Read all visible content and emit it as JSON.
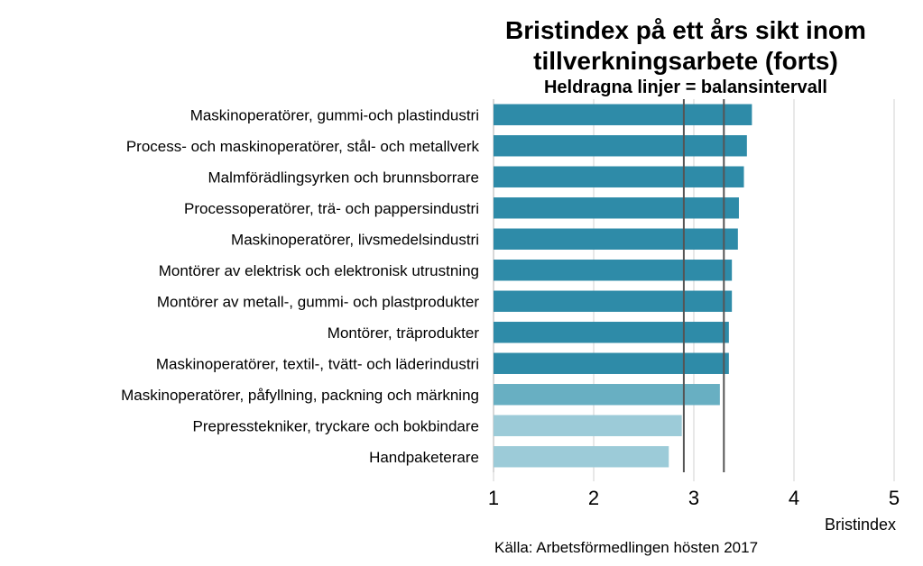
{
  "chart_data": {
    "type": "bar",
    "orientation": "horizontal",
    "title_line1": "Bristindex på ett års sikt inom",
    "title_line2": "tillverkningsarbete (forts)",
    "subtitle": "Heldragna linjer = balansintervall",
    "xlabel": "Bristindex",
    "xlim": [
      1,
      5
    ],
    "xticks": [
      "1",
      "2",
      "3",
      "4",
      "5"
    ],
    "grid": true,
    "reference_lines": [
      2.9,
      3.3
    ],
    "categories": [
      "Maskinoperatörer, gummi-och plastindustri",
      "Process- och maskinoperatörer, stål- och metallverk",
      "Malmförädlingsyrken och brunnsborrare",
      "Processoperatörer, trä- och pappersindustri",
      "Maskinoperatörer, livsmedelsindustri",
      "Montörer av elektrisk och elektronisk utrustning",
      "Montörer av metall-, gummi- och plastprodukter",
      "Montörer, träprodukter",
      "Maskinoperatörer, textil-, tvätt- och läderindustri",
      "Maskinoperatörer, påfyllning, packning och märkning",
      "Prepresstekniker, tryckare och bokbindare",
      "Handpaketerare"
    ],
    "values": [
      3.58,
      3.53,
      3.5,
      3.45,
      3.44,
      3.38,
      3.38,
      3.35,
      3.35,
      3.26,
      2.88,
      2.75
    ],
    "colors": [
      "#2e8ba8",
      "#2e8ba8",
      "#2e8ba8",
      "#2e8ba8",
      "#2e8ba8",
      "#2e8ba8",
      "#2e8ba8",
      "#2e8ba8",
      "#2e8ba8",
      "#68afc2",
      "#9ccbd8",
      "#9ccbd8"
    ]
  },
  "source": "Källa: Arbetsförmedlingen hösten 2017"
}
